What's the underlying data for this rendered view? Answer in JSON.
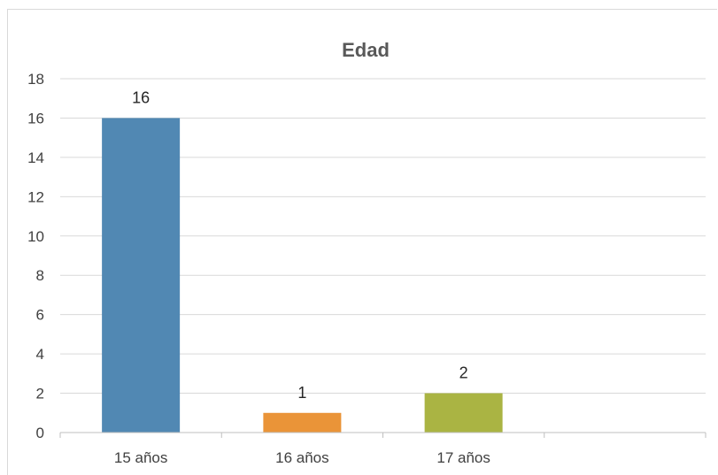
{
  "chart_data": {
    "type": "bar",
    "title": "Edad",
    "xlabel": "",
    "ylabel": "",
    "categories": [
      "15 años",
      "16 años",
      "17 años",
      ""
    ],
    "values": [
      16,
      1,
      2,
      null
    ],
    "data_labels": [
      "16",
      "1",
      "2",
      ""
    ],
    "ylim": [
      0,
      18
    ],
    "y_ticks": [
      0,
      2,
      4,
      6,
      8,
      10,
      12,
      14,
      16,
      18
    ],
    "grid": true,
    "legend": "none",
    "colors": [
      "#5188b3",
      "#ea9438",
      "#aab443",
      "#ffffff"
    ],
    "grid_color": "#d9d9d9",
    "axis_color": "#bfbfbf"
  }
}
